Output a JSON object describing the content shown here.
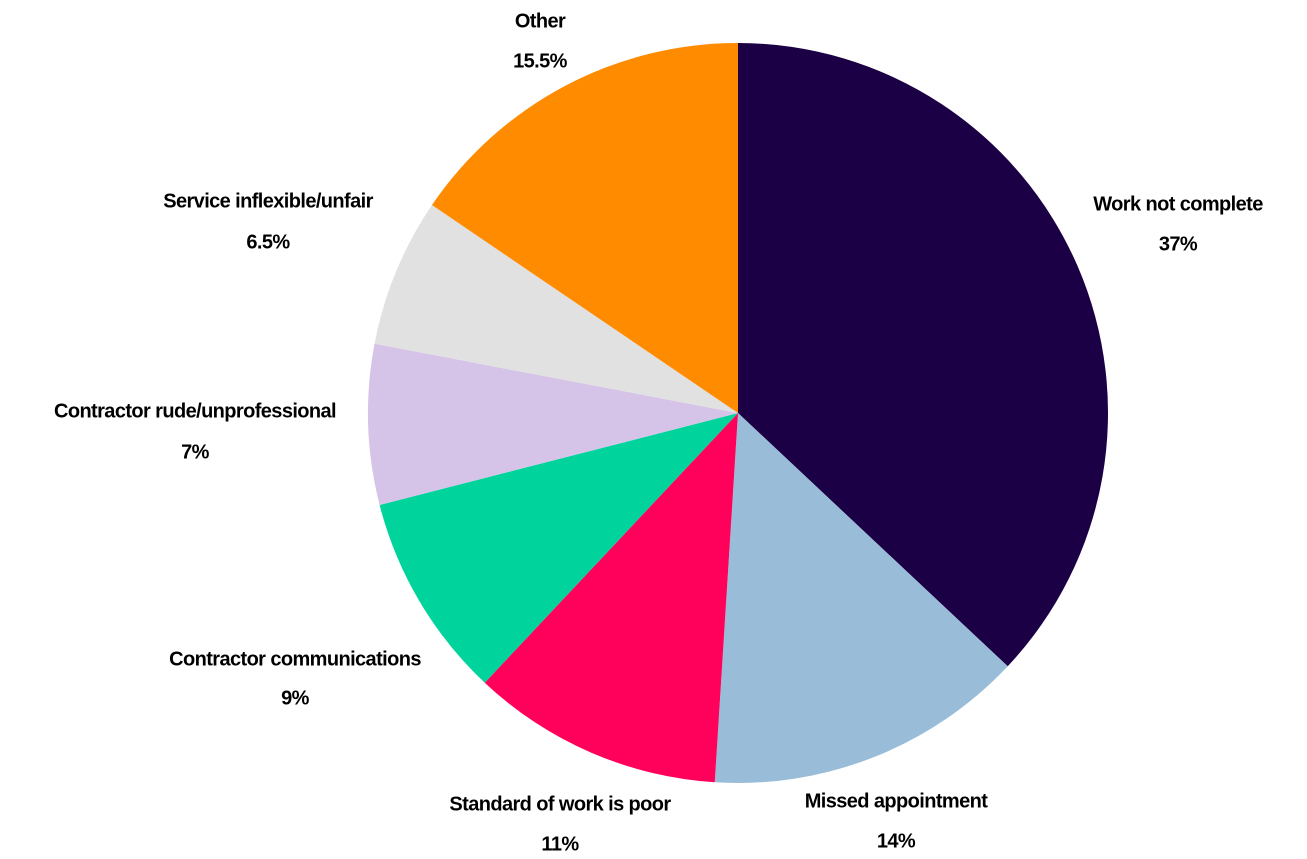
{
  "chart_data": {
    "type": "pie",
    "categories": [
      "Work not complete",
      "Missed appointment",
      "Standard of work is poor",
      "Contractor communications",
      "Contractor rude/unprofessional",
      "Service inflexible/unfair",
      "Other"
    ],
    "values": [
      37,
      14,
      11,
      9,
      7,
      6.5,
      15.5
    ],
    "value_labels": [
      "37%",
      "14%",
      "11%",
      "9%",
      "7%",
      "6.5%",
      "15.5%"
    ],
    "colors": [
      "#1c0045",
      "#99bdd8",
      "#ff005a",
      "#00d49c",
      "#d6c4e8",
      "#e1e1e1",
      "#ff8b00"
    ]
  }
}
